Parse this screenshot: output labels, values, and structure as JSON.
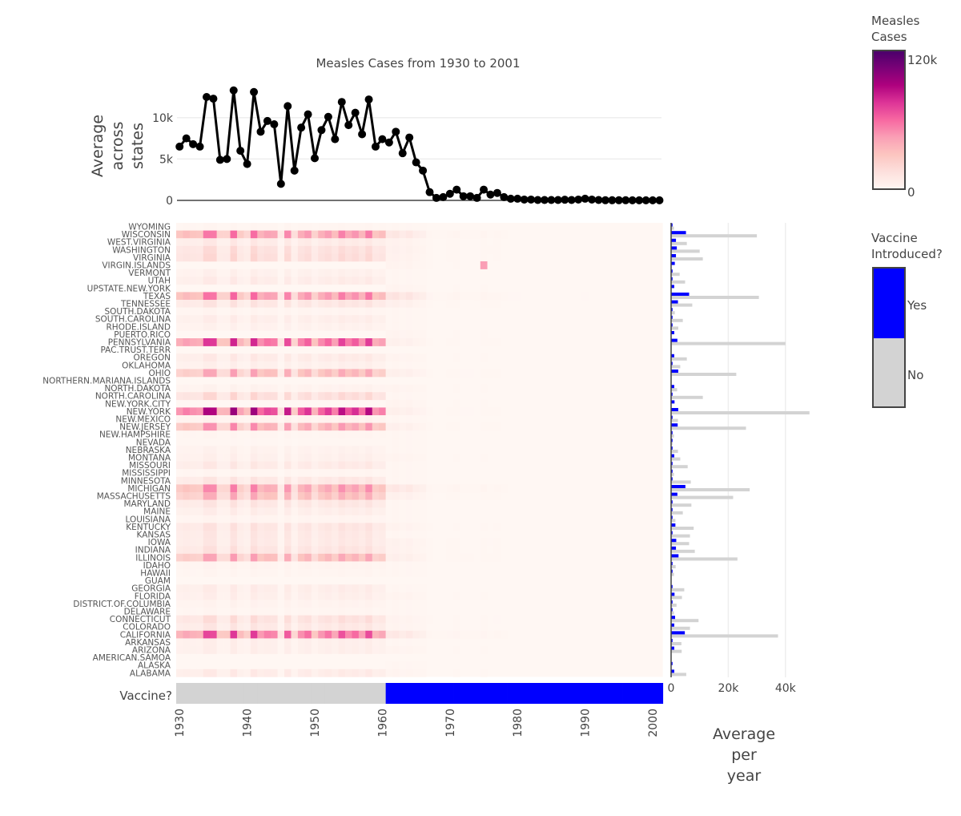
{
  "chart_data": [
    {
      "type": "line",
      "title": "Measles Cases from 1930 to 2001",
      "ylabel": [
        "Average",
        "across",
        "states"
      ],
      "yticks": [
        "0",
        "5k",
        "10k"
      ],
      "ytick_values": [
        0,
        5000,
        10000
      ],
      "ylim": [
        0,
        14000
      ],
      "x": [
        1930,
        1931,
        1932,
        1933,
        1934,
        1935,
        1936,
        1937,
        1938,
        1939,
        1940,
        1941,
        1942,
        1943,
        1944,
        1945,
        1946,
        1947,
        1948,
        1949,
        1950,
        1951,
        1952,
        1953,
        1954,
        1955,
        1956,
        1957,
        1958,
        1959,
        1960,
        1961,
        1962,
        1963,
        1964,
        1965,
        1966,
        1967,
        1968,
        1969,
        1970,
        1971,
        1972,
        1973,
        1974,
        1975,
        1976,
        1977,
        1978,
        1979,
        1980,
        1981,
        1982,
        1983,
        1984,
        1985,
        1986,
        1987,
        1988,
        1989,
        1990,
        1991,
        1992,
        1993,
        1994,
        1995,
        1996,
        1997,
        1998,
        1999,
        2000,
        2001
      ],
      "y": [
        6500,
        7500,
        6800,
        6500,
        12500,
        12300,
        4900,
        5000,
        13300,
        6000,
        4400,
        13100,
        8300,
        9600,
        9200,
        2000,
        11400,
        3600,
        8800,
        10400,
        5100,
        8500,
        10100,
        7400,
        11900,
        9100,
        10600,
        8000,
        12200,
        6500,
        7400,
        7000,
        8300,
        5700,
        7600,
        4600,
        3600,
        1000,
        300,
        400,
        800,
        1300,
        500,
        500,
        300,
        1300,
        700,
        900,
        400,
        200,
        200,
        100,
        100,
        50,
        50,
        50,
        50,
        80,
        50,
        100,
        200,
        100,
        50,
        20,
        20,
        20,
        20,
        10,
        10,
        10,
        10,
        10
      ]
    },
    {
      "type": "heatmap",
      "xlabel": "",
      "xticks": [
        "1930",
        "1940",
        "1950",
        "1960",
        "1970",
        "1980",
        "1990",
        "2000"
      ],
      "xtick_values": [
        1930,
        1940,
        1950,
        1960,
        1970,
        1980,
        1990,
        2000
      ],
      "colorbar": {
        "title": [
          "Measles",
          "Cases"
        ],
        "ticks": [
          "0",
          "120k"
        ],
        "range": [
          0,
          120000
        ],
        "colors": [
          "#fff7f3",
          "#fde0dd",
          "#fcc5c0",
          "#fa9fb5",
          "#f768a1",
          "#dd3497",
          "#ae017e",
          "#7a0177",
          "#49006a"
        ]
      },
      "z_note": "cells approximated as state average × yearly national profile",
      "notable_cells": [
        {
          "state": "VIRGIN.ISLANDS",
          "year": 1975,
          "value": 45000
        }
      ]
    },
    {
      "type": "heatmap-strip",
      "label": "Vaccine?",
      "vaccine_from_year": 1961,
      "legend": {
        "title": [
          "Vaccine",
          "Introduced?"
        ],
        "yes_label": "Yes",
        "no_label": "No",
        "yes_color": "#0000ff",
        "no_color": "#d3d3d3"
      }
    },
    {
      "type": "bar",
      "orientation": "horizontal",
      "xlabel": [
        "Average",
        "per",
        "year"
      ],
      "xticks": [
        "0",
        "20k",
        "40k"
      ],
      "xtick_values": [
        0,
        20000,
        40000
      ],
      "xlim": [
        0,
        51000
      ],
      "categories": [
        "WYOMING",
        "WISCONSIN",
        "WEST.VIRGINIA",
        "WASHINGTON",
        "VIRGINIA",
        "VIRGIN.ISLANDS",
        "VERMONT",
        "UTAH",
        "UPSTATE.NEW.YORK",
        "TEXAS",
        "TENNESSEE",
        "SOUTH.DAKOTA",
        "SOUTH.CAROLINA",
        "RHODE.ISLAND",
        "PUERTO.RICO",
        "PENNSYLVANIA",
        "PAC.TRUST.TERR",
        "OREGON",
        "OKLAHOMA",
        "OHIO",
        "NORTHERN.MARIANA.ISLANDS",
        "NORTH.DAKOTA",
        "NORTH.CAROLINA",
        "NEW.YORK.CITY",
        "NEW.YORK",
        "NEW.MEXICO",
        "NEW.JERSEY",
        "NEW.HAMPSHIRE",
        "NEVADA",
        "NEBRASKA",
        "MONTANA",
        "MISSOURI",
        "MISSISSIPPI",
        "MINNESOTA",
        "MICHIGAN",
        "MASSACHUSETTS",
        "MARYLAND",
        "MAINE",
        "LOUISIANA",
        "KENTUCKY",
        "KANSAS",
        "IOWA",
        "INDIANA",
        "ILLINOIS",
        "IDAHO",
        "HAWAII",
        "GUAM",
        "GEORGIA",
        "FLORIDA",
        "DISTRICT.OF.COLUMBIA",
        "DELAWARE",
        "CONNECTICUT",
        "COLORADO",
        "CALIFORNIA",
        "ARKANSAS",
        "ARIZONA",
        "AMERICAN.SAMOA",
        "ALASKA",
        "ALABAMA"
      ],
      "series": [
        {
          "name": "Yes",
          "color": "#0000ff",
          "values": [
            500,
            5200,
            1700,
            2000,
            1700,
            1300,
            500,
            500,
            1100,
            6300,
            2400,
            500,
            500,
            500,
            1100,
            2200,
            0,
            1100,
            500,
            2500,
            0,
            1100,
            500,
            1200,
            2500,
            500,
            2300,
            500,
            500,
            500,
            1100,
            500,
            500,
            500,
            5000,
            2200,
            500,
            500,
            500,
            1500,
            500,
            1800,
            1700,
            2600,
            500,
            500,
            0,
            500,
            1200,
            500,
            500,
            1400,
            1100,
            4800,
            500,
            1100,
            0,
            500,
            1100
          ]
        },
        {
          "name": "No",
          "color": "#d3d3d3",
          "values": [
            1000,
            30000,
            5500,
            10000,
            11100,
            0,
            3000,
            4900,
            0,
            30700,
            7400,
            1300,
            4100,
            2500,
            0,
            40000,
            0,
            5500,
            3200,
            22800,
            0,
            2100,
            11100,
            0,
            48400,
            2400,
            26200,
            1000,
            500,
            2400,
            3200,
            5800,
            1000,
            6900,
            27500,
            21700,
            7100,
            4100,
            1500,
            7900,
            6600,
            6300,
            8300,
            23200,
            1600,
            1000,
            0,
            4600,
            3800,
            1900,
            1000,
            9600,
            6600,
            37400,
            3600,
            3700,
            0,
            0,
            5300
          ]
        }
      ]
    }
  ]
}
